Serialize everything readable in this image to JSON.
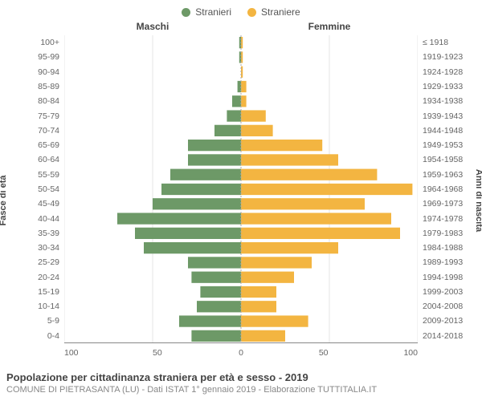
{
  "legend": {
    "male": {
      "label": "Stranieri",
      "color": "#6d9967"
    },
    "female": {
      "label": "Straniere",
      "color": "#f3b541"
    }
  },
  "headers": {
    "left": "Maschi",
    "right": "Femmine"
  },
  "axis_titles": {
    "left": "Fasce di età",
    "right": "Anni di nascita"
  },
  "chart": {
    "type": "population-pyramid",
    "x_max": 100,
    "x_ticks": [
      100,
      50,
      0,
      50,
      100
    ],
    "grid_color": "#e5e5e5",
    "background_color": "#ffffff",
    "male_color": "#6d9967",
    "female_color": "#f3b541",
    "bar_fill_ratio": 0.78,
    "rows": [
      {
        "age": "100+",
        "birth": "≤ 1918",
        "m": 1,
        "f": 1
      },
      {
        "age": "95-99",
        "birth": "1919-1923",
        "m": 1,
        "f": 1
      },
      {
        "age": "90-94",
        "birth": "1924-1928",
        "m": 0,
        "f": 1
      },
      {
        "age": "85-89",
        "birth": "1929-1933",
        "m": 2,
        "f": 3
      },
      {
        "age": "80-84",
        "birth": "1934-1938",
        "m": 5,
        "f": 3
      },
      {
        "age": "75-79",
        "birth": "1939-1943",
        "m": 8,
        "f": 14
      },
      {
        "age": "70-74",
        "birth": "1944-1948",
        "m": 15,
        "f": 18
      },
      {
        "age": "65-69",
        "birth": "1949-1953",
        "m": 30,
        "f": 46
      },
      {
        "age": "60-64",
        "birth": "1954-1958",
        "m": 30,
        "f": 55
      },
      {
        "age": "55-59",
        "birth": "1959-1963",
        "m": 40,
        "f": 77
      },
      {
        "age": "50-54",
        "birth": "1964-1968",
        "m": 45,
        "f": 97
      },
      {
        "age": "45-49",
        "birth": "1969-1973",
        "m": 50,
        "f": 70
      },
      {
        "age": "40-44",
        "birth": "1974-1978",
        "m": 70,
        "f": 85
      },
      {
        "age": "35-39",
        "birth": "1979-1983",
        "m": 60,
        "f": 90
      },
      {
        "age": "30-34",
        "birth": "1984-1988",
        "m": 55,
        "f": 55
      },
      {
        "age": "25-29",
        "birth": "1989-1993",
        "m": 30,
        "f": 40
      },
      {
        "age": "20-24",
        "birth": "1994-1998",
        "m": 28,
        "f": 30
      },
      {
        "age": "15-19",
        "birth": "1999-2003",
        "m": 23,
        "f": 20
      },
      {
        "age": "10-14",
        "birth": "2004-2008",
        "m": 25,
        "f": 20
      },
      {
        "age": "5-9",
        "birth": "2009-2013",
        "m": 35,
        "f": 38
      },
      {
        "age": "0-4",
        "birth": "2014-2018",
        "m": 28,
        "f": 25
      }
    ]
  },
  "footer": {
    "title": "Popolazione per cittadinanza straniera per età e sesso - 2019",
    "subtitle": "COMUNE DI PIETRASANTA (LU) - Dati ISTAT 1° gennaio 2019 - Elaborazione TUTTITALIA.IT"
  }
}
